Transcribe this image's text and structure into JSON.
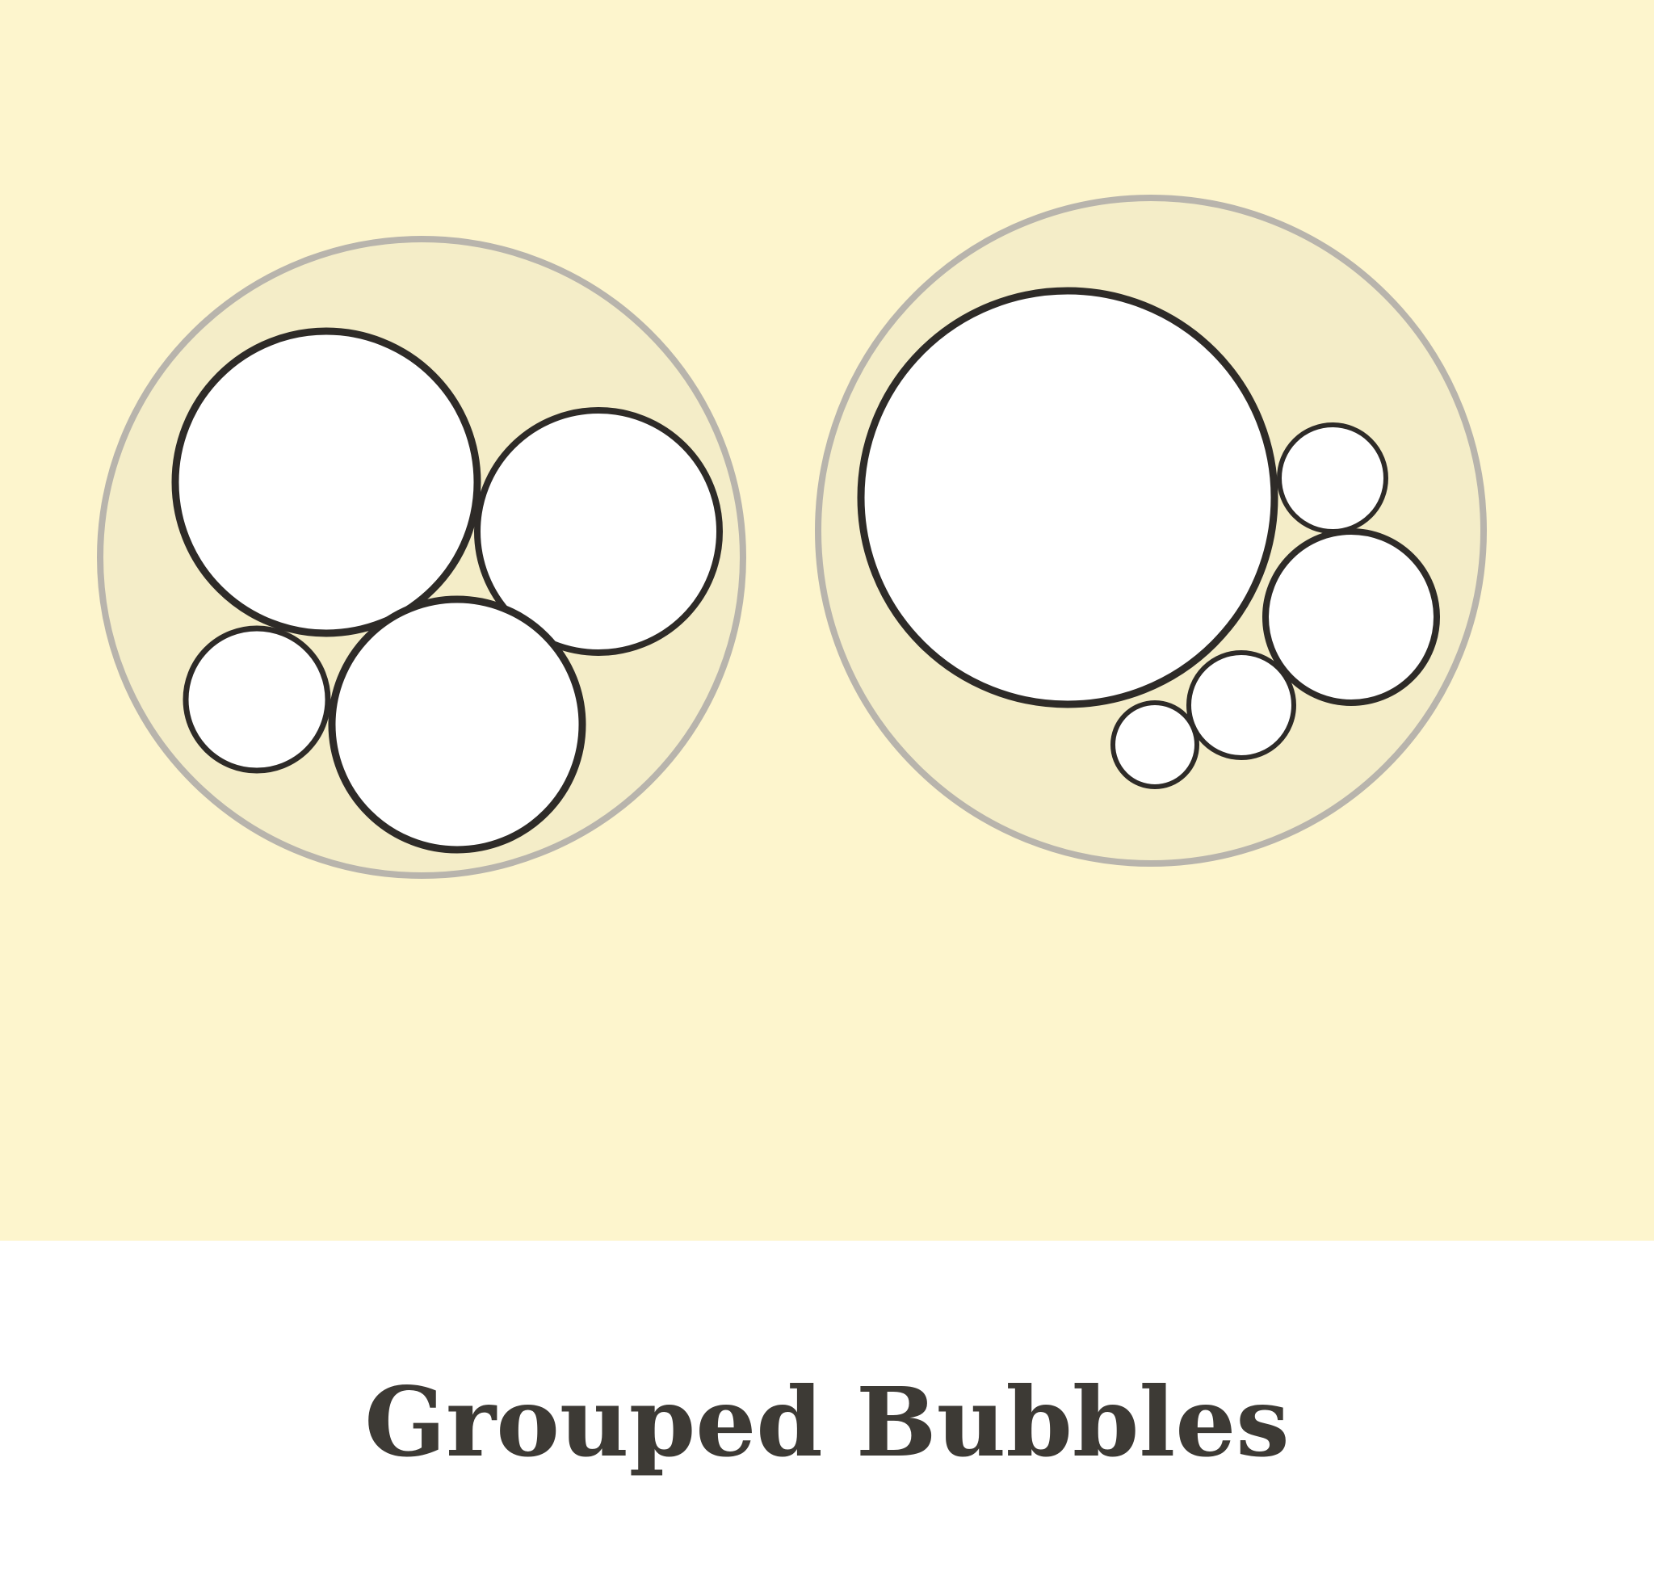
{
  "caption": "Grouped Bubbles",
  "colors": {
    "background": "#fdf5cd",
    "group_fill": "#f4edc8",
    "group_outline": "#b8b4ac",
    "bubble_fill": "#ffffff",
    "bubble_outline": "#2e2b28",
    "caption_text": "#3d3a35"
  },
  "groups": [
    {
      "name": "left-group",
      "bubble_count": 4
    },
    {
      "name": "right-group",
      "bubble_count": 5
    }
  ]
}
